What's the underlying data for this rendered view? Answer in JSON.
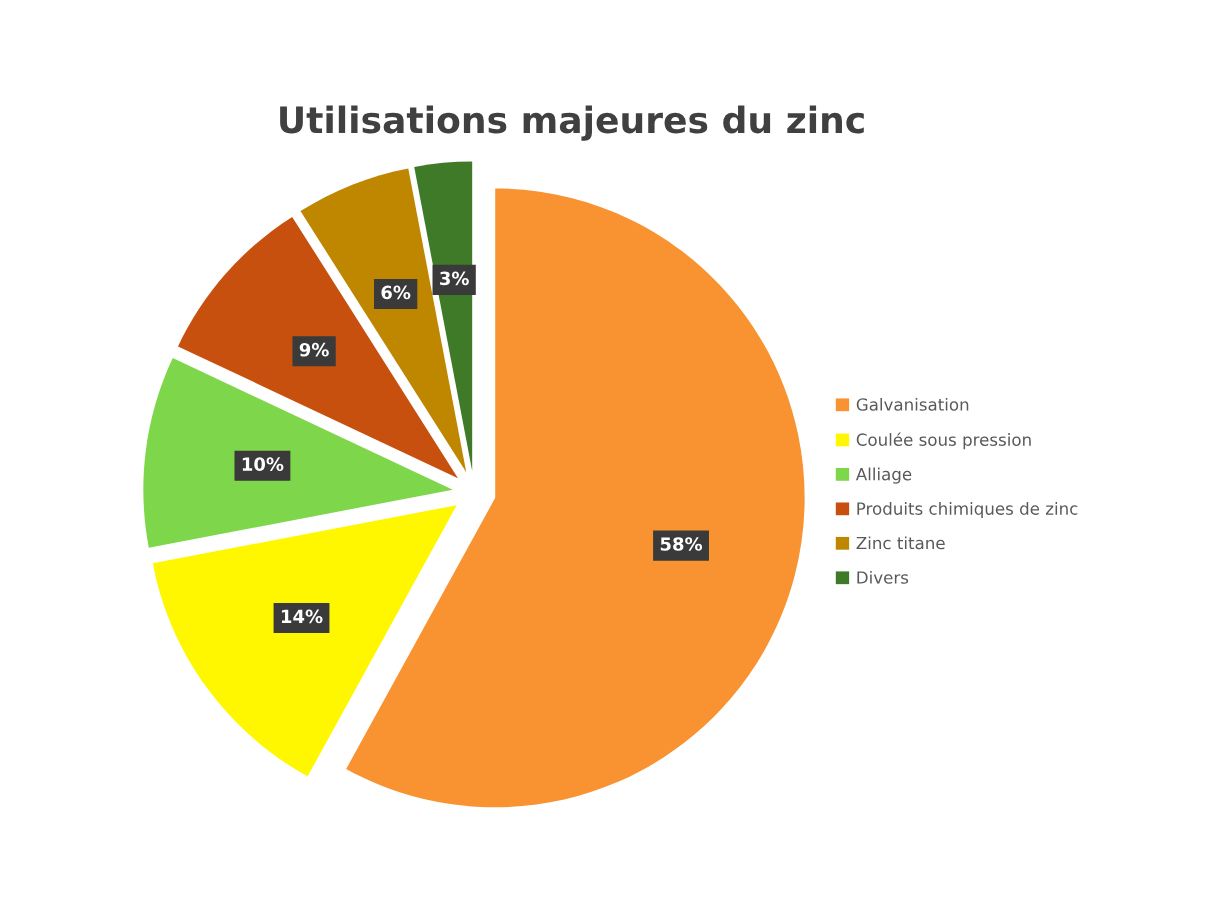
{
  "chart_data": {
    "type": "pie",
    "title": "Utilisations majeures du zinc",
    "categories": [
      "Galvanisation",
      "Coulée sous pression",
      "Alliage",
      "Produits chimiques de zinc",
      "Zinc titane",
      "Divers"
    ],
    "values": [
      58,
      14,
      10,
      9,
      6,
      3
    ],
    "colors": [
      "#f99231",
      "#fff700",
      "#7ed64a",
      "#c8500f",
      "#bf8600",
      "#3f7a29"
    ],
    "value_labels": [
      "58%",
      "14%",
      "10%",
      "9%",
      "6%",
      "3%"
    ],
    "legend": "right"
  }
}
